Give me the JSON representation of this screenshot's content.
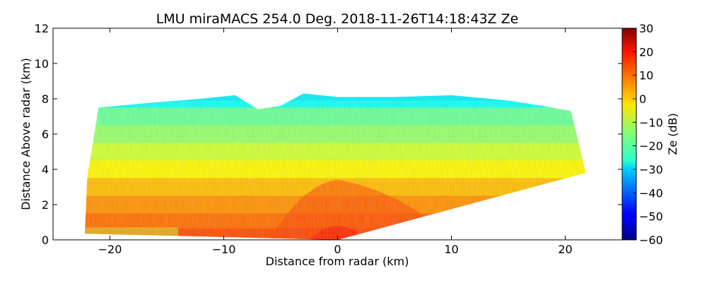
{
  "chart_data": {
    "type": "heatmap",
    "title": "LMU miraMACS 254.0 Deg. 2018-11-26T14:18:43Z  Ze",
    "xlabel": "Distance from radar (km)",
    "ylabel": "Distance Above radar  (km)",
    "xlim": [
      -25,
      25
    ],
    "ylim": [
      0,
      12
    ],
    "xticks": [
      -20,
      -10,
      0,
      10,
      20
    ],
    "xtick_labels": [
      "−20",
      "−10",
      "0",
      "10",
      "20"
    ],
    "yticks": [
      0,
      2,
      4,
      6,
      8,
      10,
      12
    ],
    "ytick_labels": [
      "0",
      "2",
      "4",
      "6",
      "8",
      "10",
      "12"
    ],
    "colorbar": {
      "label": "Ze (dB)",
      "colormap": "jet",
      "range": [
        -60,
        30
      ],
      "ticks": [
        30,
        20,
        10,
        0,
        -10,
        -20,
        -30,
        -40,
        -50,
        -60
      ],
      "tick_labels": [
        "30",
        "20",
        "10",
        "0",
        "−10",
        "−20",
        "−30",
        "−40",
        "−50",
        "−60"
      ]
    },
    "scan": {
      "left_range_km": -22.2,
      "right_range_km": 21.8,
      "right_edge_top_km": 3.8,
      "echo_top_km": [
        [
          -21,
          7.5
        ],
        [
          -16,
          7.8
        ],
        [
          -12,
          8.0
        ],
        [
          -9,
          8.2
        ],
        [
          -7,
          7.4
        ],
        [
          -5,
          7.6
        ],
        [
          -3,
          8.3
        ],
        [
          0,
          8.1
        ],
        [
          5,
          8.1
        ],
        [
          10,
          8.2
        ],
        [
          15,
          7.9
        ],
        [
          18,
          7.6
        ],
        [
          20.5,
          7.3
        ]
      ],
      "reflectivity_layers_dB": [
        {
          "height_km": 8.0,
          "ze_db": -25
        },
        {
          "height_km": 7.0,
          "ze_db": -17
        },
        {
          "height_km": 6.0,
          "ze_db": -13
        },
        {
          "height_km": 5.0,
          "ze_db": -8
        },
        {
          "height_km": 4.0,
          "ze_db": -3
        },
        {
          "height_km": 3.0,
          "ze_db": 2
        },
        {
          "height_km": 2.0,
          "ze_db": 6
        },
        {
          "height_km": 1.0,
          "ze_db": 9
        },
        {
          "height_km": 0.3,
          "ze_db": 12
        }
      ]
    }
  }
}
